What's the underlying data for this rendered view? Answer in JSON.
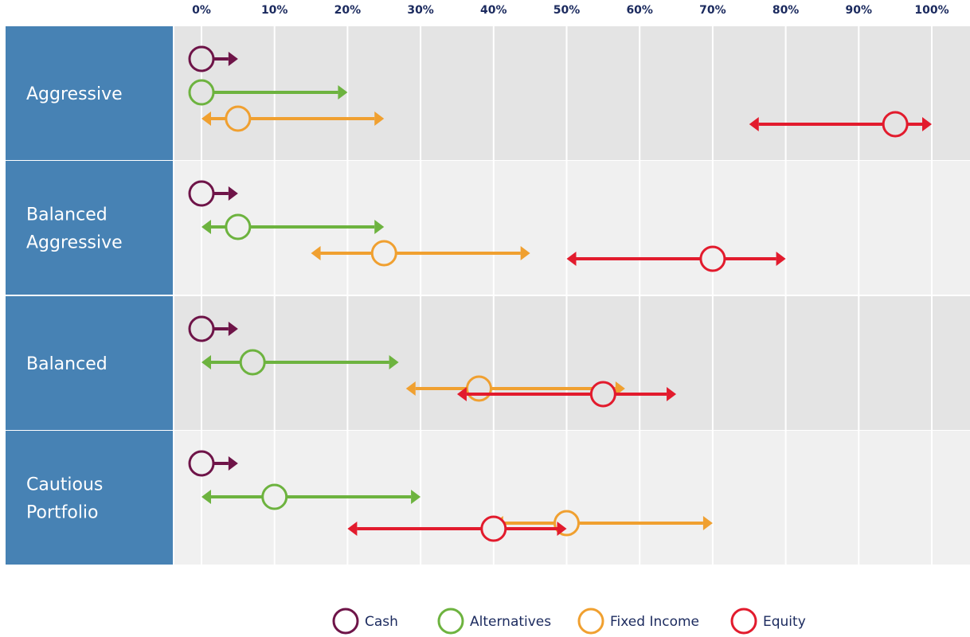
{
  "chart_data": {
    "type": "range",
    "x_tick_labels": [
      "0%",
      "10%",
      "20%",
      "30%",
      "40%",
      "50%",
      "60%",
      "70%",
      "80%",
      "90%",
      "100%"
    ],
    "xlim": [
      0,
      100
    ],
    "x_unit": "%",
    "grid": true,
    "legend_position": "bottom",
    "categories": [
      "Aggressive",
      "Balanced Aggressive",
      "Balanced",
      "Cautious Portfolio"
    ],
    "category_lines": [
      [
        "Aggressive"
      ],
      [
        "Balanced",
        "Aggressive"
      ],
      [
        "Balanced"
      ],
      [
        "Cautious",
        "Portfolio"
      ]
    ],
    "series": [
      {
        "name": "Cash",
        "color": "#6e1448",
        "points": [
          {
            "value": 0,
            "min": 0,
            "max": 5
          },
          {
            "value": 0,
            "min": 0,
            "max": 5
          },
          {
            "value": 0,
            "min": 0,
            "max": 5
          },
          {
            "value": 0,
            "min": 0,
            "max": 5
          }
        ]
      },
      {
        "name": "Alternatives",
        "color": "#6db33f",
        "points": [
          {
            "value": 0,
            "min": 0,
            "max": 20
          },
          {
            "value": 5,
            "min": 0,
            "max": 25
          },
          {
            "value": 7,
            "min": 0,
            "max": 27
          },
          {
            "value": 10,
            "min": 0,
            "max": 30
          }
        ]
      },
      {
        "name": "Fixed Income",
        "color": "#f0a030",
        "points": [
          {
            "value": 5,
            "min": 0,
            "max": 25
          },
          {
            "value": 25,
            "min": 15,
            "max": 45
          },
          {
            "value": 38,
            "min": 28,
            "max": 58
          },
          {
            "value": 50,
            "min": 40,
            "max": 70
          }
        ]
      },
      {
        "name": "Equity",
        "color": "#e21b2d",
        "points": [
          {
            "value": 95,
            "min": 75,
            "max": 100
          },
          {
            "value": 70,
            "min": 50,
            "max": 80
          },
          {
            "value": 55,
            "min": 35,
            "max": 65
          },
          {
            "value": 40,
            "min": 20,
            "max": 50
          }
        ]
      }
    ]
  },
  "colors": {
    "label_band": "#4782b4",
    "row_shade_dark": "#e4e4e4",
    "row_shade_light": "#f0f0f0",
    "tick_text": "#1b2a5e"
  }
}
